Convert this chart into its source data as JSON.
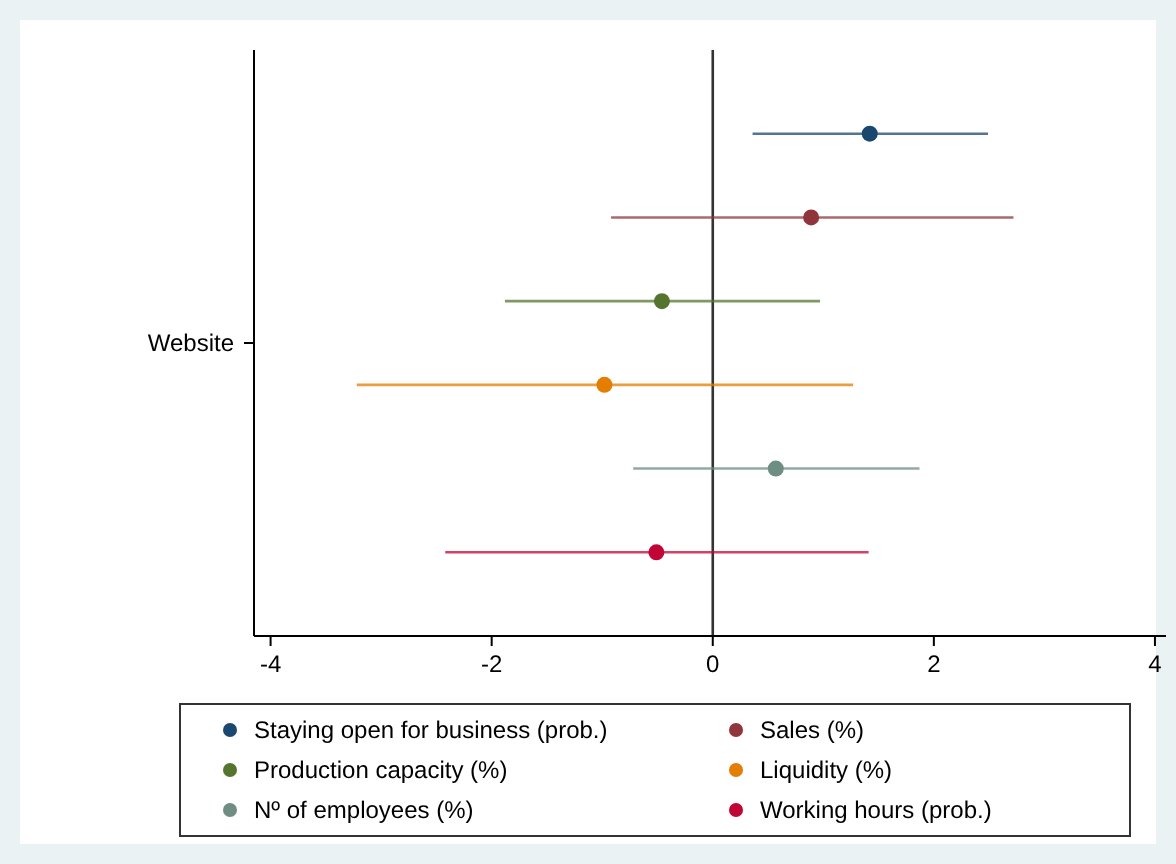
{
  "chart_data": {
    "type": "scatter",
    "orientation": "horizontal",
    "categories": [
      null,
      null,
      null,
      null,
      null,
      null
    ],
    "xlim": [
      -4.15,
      4.1
    ],
    "xticks": [
      -4,
      -2,
      0,
      2,
      4
    ],
    "grid": false,
    "legend": "bottom",
    "marker": "circle",
    "annotations": [
      "Website"
    ],
    "ref_lines": [
      {
        "axis": "x",
        "value": 0,
        "color": "#333333"
      }
    ],
    "series": [
      {
        "name": "Staying open for business (prob.)",
        "color": "#1a476f",
        "values": [
          1.42,
          null,
          null,
          null,
          null,
          null
        ],
        "errors": [
          [
            0.36,
            2.49
          ],
          null,
          null,
          null,
          null,
          null
        ]
      },
      {
        "name": "Sales (%)",
        "color": "#90353b",
        "values": [
          null,
          0.89,
          null,
          null,
          null,
          null
        ],
        "errors": [
          null,
          [
            -0.92,
            2.72
          ],
          null,
          null,
          null,
          null
        ]
      },
      {
        "name": "Production capacity (%)",
        "color": "#55752f",
        "values": [
          null,
          null,
          -0.46,
          null,
          null,
          null
        ],
        "errors": [
          null,
          null,
          [
            -1.88,
            0.97
          ],
          null,
          null,
          null
        ]
      },
      {
        "name": "Liquidity (%)",
        "color": "#e37e00",
        "values": [
          null,
          null,
          null,
          -0.98,
          null,
          null
        ],
        "errors": [
          null,
          null,
          null,
          [
            -3.22,
            1.27
          ],
          null,
          null
        ]
      },
      {
        "name": "Nº of employees (%)",
        "color": "#6e8e84",
        "values": [
          null,
          null,
          null,
          null,
          0.57,
          null
        ],
        "errors": [
          null,
          null,
          null,
          null,
          [
            -0.72,
            1.87
          ],
          null
        ]
      },
      {
        "name": "Working hours (prob.)",
        "color": "#c10534",
        "values": [
          null,
          null,
          null,
          null,
          null,
          -0.51
        ],
        "errors": [
          null,
          null,
          null,
          null,
          null,
          [
            -2.42,
            1.41
          ]
        ]
      }
    ]
  }
}
